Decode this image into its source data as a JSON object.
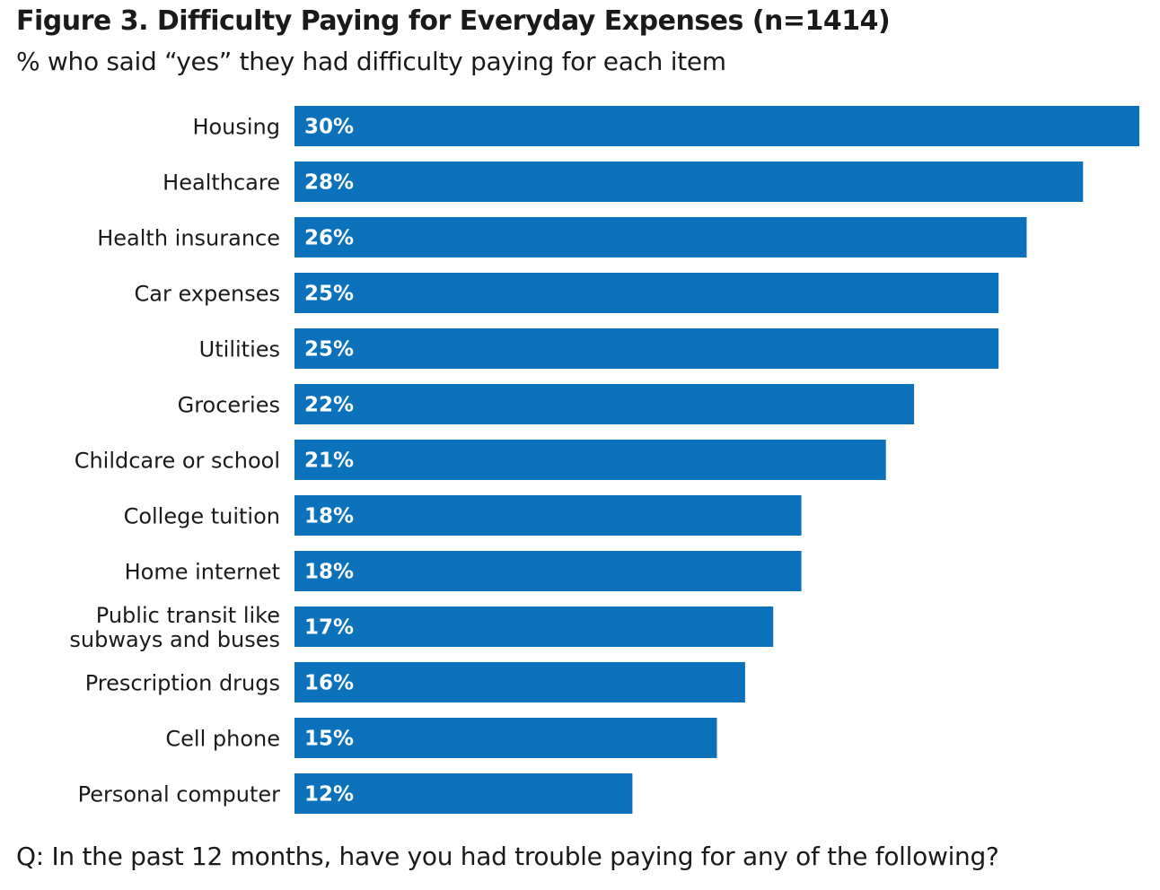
{
  "chart_data": {
    "type": "bar",
    "orientation": "horizontal",
    "title": "Figure 3. Difficulty Paying for Everyday Expenses (n=1414)",
    "subtitle": "% who said “yes” they had difficulty paying for each item",
    "footnote": "Q: In the past 12 months, have you had trouble paying for any of the following?",
    "categories": [
      "Housing",
      "Healthcare",
      "Health insurance",
      "Car expenses",
      "Utilities",
      "Groceries",
      "Childcare or school",
      "College tuition",
      "Home internet",
      "Public transit like subways and buses",
      "Prescription drugs",
      "Cell phone",
      "Personal computer"
    ],
    "category_lines": [
      [
        "Housing"
      ],
      [
        "Healthcare"
      ],
      [
        "Health insurance"
      ],
      [
        "Car expenses"
      ],
      [
        "Utilities"
      ],
      [
        "Groceries"
      ],
      [
        "Childcare or school"
      ],
      [
        "College tuition"
      ],
      [
        "Home internet"
      ],
      [
        "Public transit like",
        "subways and buses"
      ],
      [
        "Prescription drugs"
      ],
      [
        "Cell phone"
      ],
      [
        "Personal computer"
      ]
    ],
    "values": [
      30,
      28,
      26,
      25,
      25,
      22,
      21,
      18,
      18,
      17,
      16,
      15,
      12
    ],
    "value_labels": [
      "30%",
      "28%",
      "26%",
      "25%",
      "25%",
      "22%",
      "21%",
      "18%",
      "18%",
      "17%",
      "16%",
      "15%",
      "12%"
    ],
    "unit": "%",
    "xlim": [
      0,
      30
    ],
    "grid": false,
    "legend": "none",
    "bar_color": "#0c71bb"
  }
}
